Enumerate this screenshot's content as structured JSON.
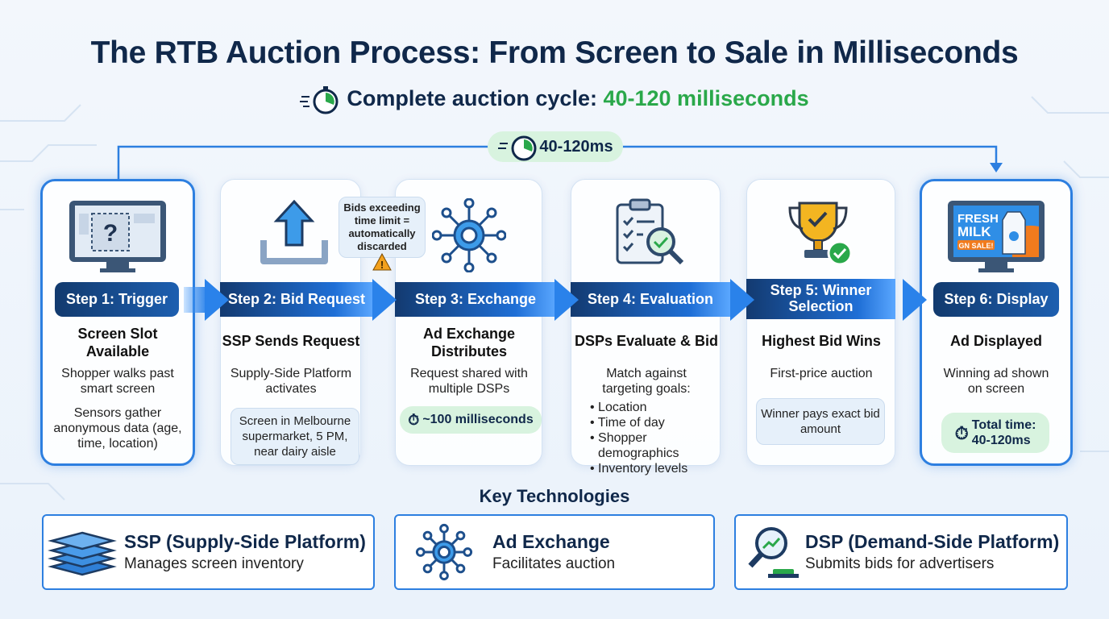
{
  "title": "The RTB Auction Process: From Screen to Sale in Milliseconds",
  "subtitle": {
    "prefix": "Complete auction cycle:",
    "highlight": "40-120 milliseconds"
  },
  "timeline_pill": "40-120ms",
  "warning_note": "Bids exceeding time limit = automatically discarded",
  "steps": [
    {
      "label": "Step 1: Trigger",
      "title": "Screen Slot Available",
      "text": "Shopper walks past smart screen",
      "text2": "Sensors gather anonymous data (age, time, location)",
      "icon": "monitor-question-icon"
    },
    {
      "label": "Step 2: Bid Request",
      "title": "SSP Sends Request",
      "text": "Supply-Side Platform activates",
      "note": "Screen in Melbourne supermarket, 5 PM, near dairy aisle",
      "icon": "upload-icon"
    },
    {
      "label": "Step 3: Exchange",
      "title": "Ad Exchange Distributes",
      "text": "Request shared with multiple DSPs",
      "pill": "~100 milliseconds",
      "icon": "hub-network-icon"
    },
    {
      "label": "Step 4: Evaluation",
      "title": "DSPs Evaluate & Bid",
      "text": "Match against targeting goals:",
      "bullets": [
        "Location",
        "Time of day",
        "Shopper demographics",
        "Inventory levels"
      ],
      "icon": "clipboard-magnifier-icon"
    },
    {
      "label": "Step 5: Winner Selection",
      "title": "Highest Bid Wins",
      "text": "First-price auction",
      "note": "Winner pays exact bid amount",
      "icon": "trophy-check-icon"
    },
    {
      "label": "Step 6: Display",
      "title": "Ad Displayed",
      "text": "Winning ad shown on screen",
      "pill_label": "Total time:",
      "pill_value": "40-120ms",
      "icon": "monitor-ad-icon",
      "ad": {
        "line1": "FRESH",
        "line2": "MILK",
        "badge": "GN SALE!"
      }
    }
  ],
  "key_technologies": {
    "heading": "Key Technologies",
    "items": [
      {
        "title": "SSP (Supply-Side Platform)",
        "desc": "Manages screen inventory",
        "icon": "stacked-layers-icon"
      },
      {
        "title": "Ad Exchange",
        "desc": "Facilitates auction",
        "icon": "hub-network-icon"
      },
      {
        "title": "DSP (Demand-Side Platform)",
        "desc": "Submits bids for advertisers",
        "icon": "magnifier-chart-icon"
      }
    ]
  },
  "colors": {
    "navy": "#10284a",
    "accent": "#2d7fe0",
    "green": "#2aa84a",
    "pill_bg": "#d8f3df"
  }
}
